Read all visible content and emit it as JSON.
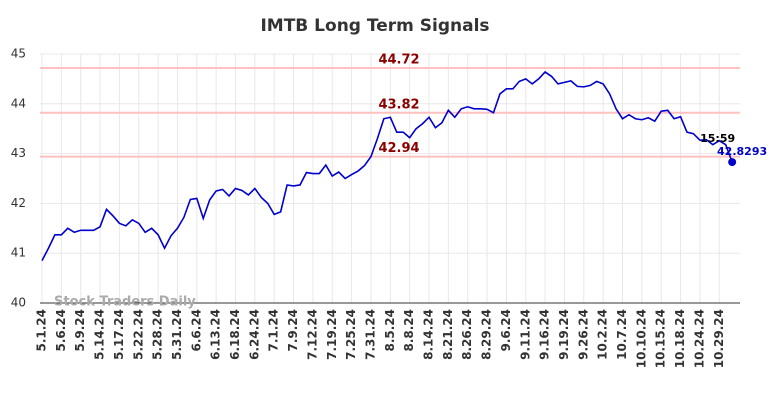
{
  "chart_data": {
    "type": "line",
    "title": "IMTB Long Term Signals",
    "categories": [
      "5.1.24",
      null,
      null,
      "5.6.24",
      null,
      null,
      "5.9.24",
      null,
      null,
      "5.14.24",
      null,
      null,
      "5.17.24",
      null,
      null,
      "5.22.24",
      null,
      null,
      "5.28.24",
      null,
      null,
      "5.31.24",
      null,
      null,
      "6.6.24",
      null,
      null,
      "6.13.24",
      null,
      null,
      "6.18.24",
      null,
      null,
      "6.24.24",
      null,
      null,
      "7.1.24",
      null,
      null,
      "7.9.24",
      null,
      null,
      "7.12.24",
      null,
      null,
      "7.19.24",
      null,
      null,
      "7.25.24",
      null,
      null,
      "7.31.24",
      null,
      null,
      "8.5.24",
      null,
      null,
      "8.8.24",
      null,
      null,
      "8.14.24",
      null,
      null,
      "8.21.24",
      null,
      null,
      "8.26.24",
      null,
      null,
      "8.29.24",
      null,
      null,
      "9.6.24",
      null,
      null,
      "9.11.24",
      null,
      null,
      "9.16.24",
      null,
      null,
      "9.19.24",
      null,
      null,
      "9.26.24",
      null,
      null,
      "10.2.24",
      null,
      null,
      "10.7.24",
      null,
      null,
      "10.10.24",
      null,
      null,
      "10.15.24",
      null,
      null,
      "10.18.24",
      null,
      null,
      "10.24.24",
      null,
      null,
      "10.29.24",
      null,
      null
    ],
    "values": [
      40.85,
      41.1,
      41.37,
      41.37,
      41.5,
      41.42,
      41.46,
      41.46,
      41.46,
      41.53,
      41.88,
      41.75,
      41.6,
      41.55,
      41.67,
      41.6,
      41.42,
      41.5,
      41.37,
      41.1,
      41.35,
      41.5,
      41.72,
      42.08,
      42.1,
      41.7,
      42.07,
      42.25,
      42.28,
      42.15,
      42.3,
      42.26,
      42.17,
      42.3,
      42.12,
      42.0,
      41.78,
      41.83,
      42.37,
      42.35,
      42.37,
      42.62,
      42.6,
      42.6,
      42.77,
      42.55,
      42.63,
      42.5,
      42.58,
      42.65,
      42.76,
      42.94,
      43.3,
      43.7,
      43.73,
      43.43,
      43.43,
      43.32,
      43.5,
      43.6,
      43.73,
      43.52,
      43.62,
      43.87,
      43.73,
      43.9,
      43.94,
      43.9,
      43.9,
      43.89,
      43.82,
      44.2,
      44.3,
      44.3,
      44.45,
      44.5,
      44.4,
      44.5,
      44.64,
      44.55,
      44.4,
      44.43,
      44.46,
      44.35,
      44.34,
      44.37,
      44.45,
      44.4,
      44.2,
      43.9,
      43.7,
      43.78,
      43.7,
      43.68,
      43.72,
      43.65,
      43.85,
      43.87,
      43.7,
      43.74,
      43.43,
      43.4,
      43.27,
      43.28,
      43.18,
      43.26,
      43.18,
      42.8293
    ],
    "color": "#0000cc",
    "levels": [
      44.72,
      43.82,
      42.94
    ],
    "level_color": "#ffc0c0",
    "level_label_color": "#8b0000",
    "last_time": "15:59",
    "watermark": "Stock Traders Daily",
    "ylim": [
      40,
      45
    ],
    "yticks": [
      40,
      41,
      42,
      43,
      44,
      45
    ],
    "grid": true
  }
}
